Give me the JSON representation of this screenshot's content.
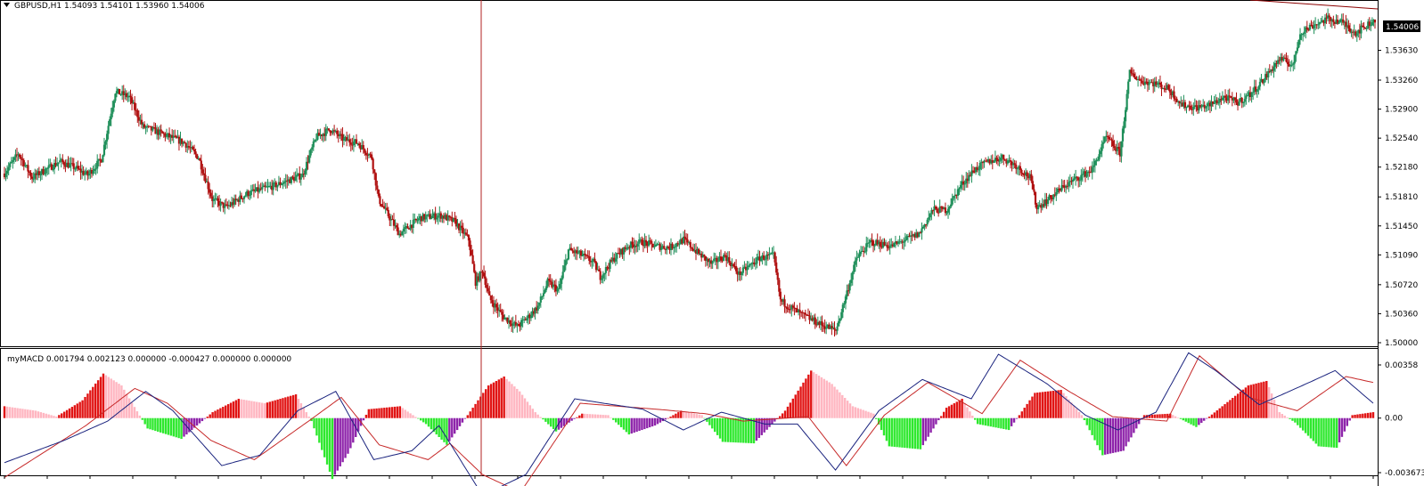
{
  "colors": {
    "background": "#ffffff",
    "bull_candle": "#1f8f5a",
    "bear_candle": "#b01010",
    "crosshair": "#b22222",
    "macd_line": "#1a237e",
    "signal_line": "#c62828",
    "hist_red": "#e11414",
    "hist_pink": "#ffb6c1",
    "hist_green": "#2ee82e",
    "hist_purple": "#8e24aa",
    "price_tag_bg": "#000000",
    "price_tag_fg": "#ffffff"
  },
  "main_pane": {
    "header": "GBPUSD,H1  1.54093 1.54101 1.53960 1.54006",
    "current_price": "1.54006",
    "price_axis_labels": [
      "1.53630",
      "1.53260",
      "1.52900",
      "1.52540",
      "1.52180",
      "1.51810",
      "1.51450",
      "1.51090",
      "1.50720",
      "1.50360",
      "1.50000"
    ]
  },
  "indicator_pane": {
    "header": "myMACD 0.001794 0.002123 0.000000 -0.000427 0.000000 0.000000",
    "axis_labels": [
      "0.00358",
      "0.00",
      "-0.003673"
    ]
  },
  "chart_data": [
    {
      "type": "candlestick",
      "title": "GBPUSD,H1",
      "ylim": [
        1.5,
        1.541
      ],
      "anchors": [
        [
          0,
          1.521
        ],
        [
          10,
          1.5235
        ],
        [
          20,
          1.5205
        ],
        [
          30,
          1.5215
        ],
        [
          40,
          1.5225
        ],
        [
          50,
          1.5218
        ],
        [
          60,
          1.5208
        ],
        [
          70,
          1.5228
        ],
        [
          80,
          1.5312
        ],
        [
          90,
          1.5305
        ],
        [
          100,
          1.5268
        ],
        [
          110,
          1.5262
        ],
        [
          130,
          1.5248
        ],
        [
          140,
          1.523
        ],
        [
          150,
          1.5178
        ],
        [
          160,
          1.5168
        ],
        [
          175,
          1.5185
        ],
        [
          195,
          1.5195
        ],
        [
          215,
          1.5208
        ],
        [
          225,
          1.5255
        ],
        [
          235,
          1.5265
        ],
        [
          245,
          1.5252
        ],
        [
          255,
          1.5248
        ],
        [
          265,
          1.523
        ],
        [
          270,
          1.5178
        ],
        [
          285,
          1.5135
        ],
        [
          300,
          1.5155
        ],
        [
          315,
          1.5158
        ],
        [
          325,
          1.515
        ],
        [
          335,
          1.5128
        ],
        [
          340,
          1.5075
        ],
        [
          345,
          1.509
        ],
        [
          350,
          1.5055
        ],
        [
          360,
          1.5032
        ],
        [
          370,
          1.502
        ],
        [
          378,
          1.5032
        ],
        [
          385,
          1.5045
        ],
        [
          392,
          1.5075
        ],
        [
          400,
          1.5065
        ],
        [
          407,
          1.5115
        ],
        [
          415,
          1.511
        ],
        [
          425,
          1.51
        ],
        [
          430,
          1.5082
        ],
        [
          440,
          1.5105
        ],
        [
          450,
          1.512
        ],
        [
          460,
          1.5125
        ],
        [
          470,
          1.512
        ],
        [
          480,
          1.5118
        ],
        [
          490,
          1.5128
        ],
        [
          500,
          1.5112
        ],
        [
          510,
          1.5098
        ],
        [
          520,
          1.5108
        ],
        [
          530,
          1.5085
        ],
        [
          545,
          1.5105
        ],
        [
          555,
          1.5108
        ],
        [
          560,
          1.5052
        ],
        [
          575,
          1.5035
        ],
        [
          590,
          1.5022
        ],
        [
          600,
          1.5015
        ],
        [
          605,
          1.5045
        ],
        [
          615,
          1.5105
        ],
        [
          625,
          1.5125
        ],
        [
          640,
          1.512
        ],
        [
          660,
          1.5135
        ],
        [
          670,
          1.5165
        ],
        [
          680,
          1.5165
        ],
        [
          690,
          1.5195
        ],
        [
          700,
          1.5215
        ],
        [
          710,
          1.5225
        ],
        [
          720,
          1.523
        ],
        [
          730,
          1.522
        ],
        [
          740,
          1.5205
        ],
        [
          745,
          1.5168
        ],
        [
          755,
          1.518
        ],
        [
          765,
          1.5195
        ],
        [
          775,
          1.5205
        ],
        [
          785,
          1.5215
        ],
        [
          795,
          1.5255
        ],
        [
          800,
          1.5245
        ],
        [
          805,
          1.5235
        ],
        [
          812,
          1.5335
        ],
        [
          820,
          1.5325
        ],
        [
          830,
          1.5322
        ],
        [
          840,
          1.5315
        ],
        [
          850,
          1.5295
        ],
        [
          860,
          1.5292
        ],
        [
          870,
          1.5295
        ],
        [
          880,
          1.5305
        ],
        [
          890,
          1.5298
        ],
        [
          900,
          1.531
        ],
        [
          910,
          1.533
        ],
        [
          920,
          1.5352
        ],
        [
          930,
          1.5345
        ],
        [
          935,
          1.5385
        ],
        [
          945,
          1.5395
        ],
        [
          955,
          1.5402
        ],
        [
          965,
          1.5398
        ],
        [
          975,
          1.5385
        ],
        [
          985,
          1.5396
        ],
        [
          989,
          1.54006
        ]
      ]
    },
    {
      "type": "macd",
      "title": "myMACD",
      "series": [
        {
          "name": "histogram",
          "anchors": [
            [
              0,
              0.0008
            ],
            [
              12,
              0.0005
            ],
            [
              20,
              0.0001
            ],
            [
              30,
              0.0012
            ],
            [
              38,
              0.003
            ],
            [
              45,
              0.0022
            ],
            [
              55,
              -0.0007
            ],
            [
              68,
              -0.0014
            ],
            [
              80,
              0.0004
            ],
            [
              90,
              0.0013
            ],
            [
              100,
              0.001
            ],
            [
              112,
              0.0016
            ],
            [
              118,
              -0.0002
            ],
            [
              126,
              -0.0041
            ],
            [
              132,
              -0.0024
            ],
            [
              140,
              0.0006
            ],
            [
              152,
              0.0008
            ],
            [
              162,
              -0.0004
            ],
            [
              170,
              -0.0018
            ],
            [
              178,
              0.0002
            ],
            [
              186,
              0.0022
            ],
            [
              192,
              0.0028
            ],
            [
              198,
              0.0018
            ],
            [
              204,
              0.0004
            ],
            [
              212,
              -0.0009
            ],
            [
              222,
              0.0003
            ],
            [
              232,
              0.0002
            ],
            [
              240,
              -0.0011
            ],
            [
              250,
              -0.0005
            ],
            [
              260,
              0.0005
            ],
            [
              268,
              0.0002
            ],
            [
              276,
              -0.0016
            ],
            [
              288,
              -0.0017
            ],
            [
              300,
              0.0005
            ],
            [
              310,
              0.0032
            ],
            [
              318,
              0.0023
            ],
            [
              326,
              0.0008
            ],
            [
              334,
              0.0003
            ],
            [
              340,
              -0.0019
            ],
            [
              352,
              -0.0021
            ],
            [
              362,
              0.0007
            ],
            [
              368,
              0.0013
            ],
            [
              374,
              -0.0004
            ],
            [
              386,
              -0.0008
            ],
            [
              396,
              0.0017
            ],
            [
              406,
              0.0019
            ],
            [
              414,
              0.0002
            ],
            [
              422,
              -0.0025
            ],
            [
              430,
              -0.0022
            ],
            [
              438,
              0.0002
            ],
            [
              448,
              0.0003
            ],
            [
              458,
              -0.0006
            ],
            [
              468,
              0.0008
            ],
            [
              478,
              0.0022
            ],
            [
              485,
              0.0025
            ],
            [
              490,
              0.0004
            ],
            [
              496,
              -0.0003
            ],
            [
              505,
              -0.0019
            ],
            [
              512,
              -0.002
            ],
            [
              518,
              0.0002
            ],
            [
              526,
              0.0004
            ]
          ]
        },
        {
          "name": "macd",
          "anchors": [
            [
              0,
              -0.003
            ],
            [
              22,
              -0.0015
            ],
            [
              38,
              -0.0002
            ],
            [
              52,
              0.0018
            ],
            [
              62,
              0.0005
            ],
            [
              80,
              -0.0032
            ],
            [
              94,
              -0.0025
            ],
            [
              108,
              0.0005
            ],
            [
              122,
              0.0018
            ],
            [
              136,
              -0.0028
            ],
            [
              150,
              -0.0022
            ],
            [
              160,
              -0.0005
            ],
            [
              176,
              -0.0052
            ],
            [
              192,
              -0.0038
            ],
            [
              210,
              0.0013
            ],
            [
              235,
              0.0006
            ],
            [
              250,
              -0.0008
            ],
            [
              264,
              0.0004
            ],
            [
              280,
              -0.0004
            ],
            [
              292,
              -0.0004
            ],
            [
              306,
              -0.0035
            ],
            [
              322,
              0.0005
            ],
            [
              338,
              0.0026
            ],
            [
              356,
              0.0013
            ],
            [
              366,
              0.0043
            ],
            [
              384,
              0.0023
            ],
            [
              398,
              0.0002
            ],
            [
              410,
              -0.0008
            ],
            [
              424,
              0.0004
            ],
            [
              436,
              0.0044
            ],
            [
              446,
              0.0032
            ],
            [
              462,
              0.0009
            ],
            [
              478,
              0.0022
            ],
            [
              490,
              0.0032
            ],
            [
              504,
              0.001
            ]
          ]
        },
        {
          "name": "signal",
          "anchors": [
            [
              0,
              -0.004
            ],
            [
              30,
              -0.0005
            ],
            [
              48,
              0.002
            ],
            [
              60,
              0.001
            ],
            [
              76,
              -0.0015
            ],
            [
              92,
              -0.0028
            ],
            [
              112,
              -0.0002
            ],
            [
              124,
              0.0014
            ],
            [
              138,
              -0.0018
            ],
            [
              156,
              -0.0028
            ],
            [
              164,
              -0.0017
            ],
            [
              176,
              -0.0038
            ],
            [
              190,
              -0.005
            ],
            [
              212,
              0.001
            ],
            [
              240,
              0.0006
            ],
            [
              258,
              0.0003
            ],
            [
              272,
              -0.0002
            ],
            [
              296,
              0.0001
            ],
            [
              310,
              -0.0032
            ],
            [
              324,
              0.0002
            ],
            [
              340,
              0.0024
            ],
            [
              360,
              0.0003
            ],
            [
              374,
              0.0039
            ],
            [
              392,
              0.0018
            ],
            [
              408,
              0.0001
            ],
            [
              428,
              -0.0002
            ],
            [
              440,
              0.0042
            ],
            [
              458,
              0.0014
            ],
            [
              476,
              0.0005
            ],
            [
              494,
              0.0028
            ],
            [
              504,
              0.0024
            ]
          ]
        }
      ]
    }
  ]
}
